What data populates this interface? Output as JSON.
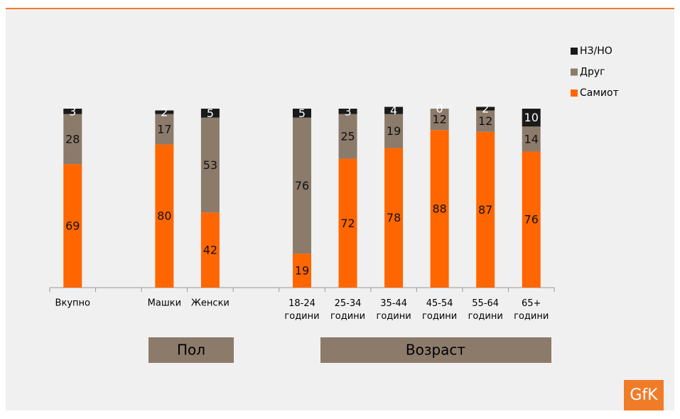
{
  "chart_data": {
    "type": "stacked_bar",
    "categories": [
      "Вкупно",
      null,
      "Машки",
      "Женски",
      null,
      "18-24 години",
      "25-34 години",
      "35-44 години",
      "45-54 години",
      "55-64 години",
      "65+ години"
    ],
    "series": [
      {
        "name": "Самиот",
        "color": "#ff6600",
        "values": [
          69,
          null,
          80,
          42,
          null,
          19,
          72,
          78,
          88,
          87,
          76
        ]
      },
      {
        "name": "Друг",
        "color": "#8c7b6b",
        "values": [
          28,
          null,
          17,
          53,
          null,
          76,
          25,
          19,
          12,
          12,
          14
        ]
      },
      {
        "name": "НЗ/НО",
        "color": "#1a1a1a",
        "values": [
          3,
          null,
          2,
          5,
          null,
          5,
          3,
          4,
          0,
          2,
          10
        ]
      }
    ],
    "ylim": [
      0,
      100
    ],
    "legend": "right"
  },
  "group_labels": [
    "Пол",
    "Возраст"
  ],
  "logo": "GfK"
}
